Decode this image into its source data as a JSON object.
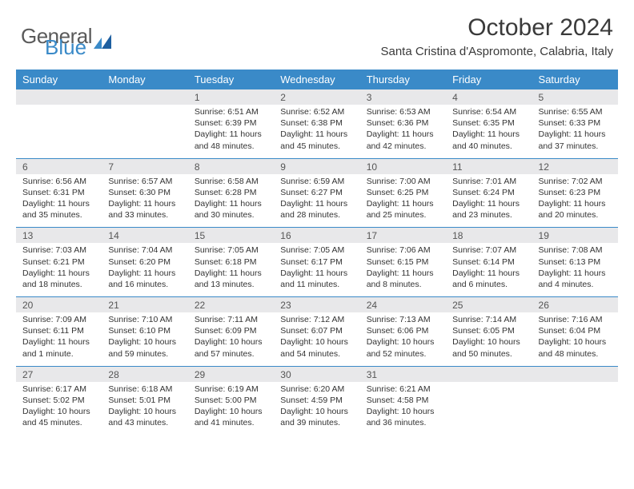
{
  "brand": {
    "part1": "General",
    "part2": "Blue"
  },
  "title": "October 2024",
  "location": "Santa Cristina d'Aspromonte, Calabria, Italy",
  "colors": {
    "header_bg": "#3a8ac8",
    "header_text": "#ffffff",
    "daynum_bg": "#e8e8ea",
    "border": "#3a8ac8",
    "body_text": "#333333",
    "logo_gray": "#5a5a5a",
    "logo_blue": "#3a8ac8"
  },
  "typography": {
    "title_fontsize": 30,
    "location_fontsize": 15,
    "header_fontsize": 13,
    "daynum_fontsize": 12,
    "detail_fontsize": 10.5
  },
  "dayNames": [
    "Sunday",
    "Monday",
    "Tuesday",
    "Wednesday",
    "Thursday",
    "Friday",
    "Saturday"
  ],
  "weeks": [
    {
      "nums": [
        "",
        "",
        "1",
        "2",
        "3",
        "4",
        "5"
      ],
      "cells": [
        null,
        null,
        {
          "sunrise": "Sunrise: 6:51 AM",
          "sunset": "Sunset: 6:39 PM",
          "daylight": "Daylight: 11 hours and 48 minutes."
        },
        {
          "sunrise": "Sunrise: 6:52 AM",
          "sunset": "Sunset: 6:38 PM",
          "daylight": "Daylight: 11 hours and 45 minutes."
        },
        {
          "sunrise": "Sunrise: 6:53 AM",
          "sunset": "Sunset: 6:36 PM",
          "daylight": "Daylight: 11 hours and 42 minutes."
        },
        {
          "sunrise": "Sunrise: 6:54 AM",
          "sunset": "Sunset: 6:35 PM",
          "daylight": "Daylight: 11 hours and 40 minutes."
        },
        {
          "sunrise": "Sunrise: 6:55 AM",
          "sunset": "Sunset: 6:33 PM",
          "daylight": "Daylight: 11 hours and 37 minutes."
        }
      ]
    },
    {
      "nums": [
        "6",
        "7",
        "8",
        "9",
        "10",
        "11",
        "12"
      ],
      "cells": [
        {
          "sunrise": "Sunrise: 6:56 AM",
          "sunset": "Sunset: 6:31 PM",
          "daylight": "Daylight: 11 hours and 35 minutes."
        },
        {
          "sunrise": "Sunrise: 6:57 AM",
          "sunset": "Sunset: 6:30 PM",
          "daylight": "Daylight: 11 hours and 33 minutes."
        },
        {
          "sunrise": "Sunrise: 6:58 AM",
          "sunset": "Sunset: 6:28 PM",
          "daylight": "Daylight: 11 hours and 30 minutes."
        },
        {
          "sunrise": "Sunrise: 6:59 AM",
          "sunset": "Sunset: 6:27 PM",
          "daylight": "Daylight: 11 hours and 28 minutes."
        },
        {
          "sunrise": "Sunrise: 7:00 AM",
          "sunset": "Sunset: 6:25 PM",
          "daylight": "Daylight: 11 hours and 25 minutes."
        },
        {
          "sunrise": "Sunrise: 7:01 AM",
          "sunset": "Sunset: 6:24 PM",
          "daylight": "Daylight: 11 hours and 23 minutes."
        },
        {
          "sunrise": "Sunrise: 7:02 AM",
          "sunset": "Sunset: 6:23 PM",
          "daylight": "Daylight: 11 hours and 20 minutes."
        }
      ]
    },
    {
      "nums": [
        "13",
        "14",
        "15",
        "16",
        "17",
        "18",
        "19"
      ],
      "cells": [
        {
          "sunrise": "Sunrise: 7:03 AM",
          "sunset": "Sunset: 6:21 PM",
          "daylight": "Daylight: 11 hours and 18 minutes."
        },
        {
          "sunrise": "Sunrise: 7:04 AM",
          "sunset": "Sunset: 6:20 PM",
          "daylight": "Daylight: 11 hours and 16 minutes."
        },
        {
          "sunrise": "Sunrise: 7:05 AM",
          "sunset": "Sunset: 6:18 PM",
          "daylight": "Daylight: 11 hours and 13 minutes."
        },
        {
          "sunrise": "Sunrise: 7:05 AM",
          "sunset": "Sunset: 6:17 PM",
          "daylight": "Daylight: 11 hours and 11 minutes."
        },
        {
          "sunrise": "Sunrise: 7:06 AM",
          "sunset": "Sunset: 6:15 PM",
          "daylight": "Daylight: 11 hours and 8 minutes."
        },
        {
          "sunrise": "Sunrise: 7:07 AM",
          "sunset": "Sunset: 6:14 PM",
          "daylight": "Daylight: 11 hours and 6 minutes."
        },
        {
          "sunrise": "Sunrise: 7:08 AM",
          "sunset": "Sunset: 6:13 PM",
          "daylight": "Daylight: 11 hours and 4 minutes."
        }
      ]
    },
    {
      "nums": [
        "20",
        "21",
        "22",
        "23",
        "24",
        "25",
        "26"
      ],
      "cells": [
        {
          "sunrise": "Sunrise: 7:09 AM",
          "sunset": "Sunset: 6:11 PM",
          "daylight": "Daylight: 11 hours and 1 minute."
        },
        {
          "sunrise": "Sunrise: 7:10 AM",
          "sunset": "Sunset: 6:10 PM",
          "daylight": "Daylight: 10 hours and 59 minutes."
        },
        {
          "sunrise": "Sunrise: 7:11 AM",
          "sunset": "Sunset: 6:09 PM",
          "daylight": "Daylight: 10 hours and 57 minutes."
        },
        {
          "sunrise": "Sunrise: 7:12 AM",
          "sunset": "Sunset: 6:07 PM",
          "daylight": "Daylight: 10 hours and 54 minutes."
        },
        {
          "sunrise": "Sunrise: 7:13 AM",
          "sunset": "Sunset: 6:06 PM",
          "daylight": "Daylight: 10 hours and 52 minutes."
        },
        {
          "sunrise": "Sunrise: 7:14 AM",
          "sunset": "Sunset: 6:05 PM",
          "daylight": "Daylight: 10 hours and 50 minutes."
        },
        {
          "sunrise": "Sunrise: 7:16 AM",
          "sunset": "Sunset: 6:04 PM",
          "daylight": "Daylight: 10 hours and 48 minutes."
        }
      ]
    },
    {
      "nums": [
        "27",
        "28",
        "29",
        "30",
        "31",
        "",
        ""
      ],
      "cells": [
        {
          "sunrise": "Sunrise: 6:17 AM",
          "sunset": "Sunset: 5:02 PM",
          "daylight": "Daylight: 10 hours and 45 minutes."
        },
        {
          "sunrise": "Sunrise: 6:18 AM",
          "sunset": "Sunset: 5:01 PM",
          "daylight": "Daylight: 10 hours and 43 minutes."
        },
        {
          "sunrise": "Sunrise: 6:19 AM",
          "sunset": "Sunset: 5:00 PM",
          "daylight": "Daylight: 10 hours and 41 minutes."
        },
        {
          "sunrise": "Sunrise: 6:20 AM",
          "sunset": "Sunset: 4:59 PM",
          "daylight": "Daylight: 10 hours and 39 minutes."
        },
        {
          "sunrise": "Sunrise: 6:21 AM",
          "sunset": "Sunset: 4:58 PM",
          "daylight": "Daylight: 10 hours and 36 minutes."
        },
        null,
        null
      ]
    }
  ]
}
